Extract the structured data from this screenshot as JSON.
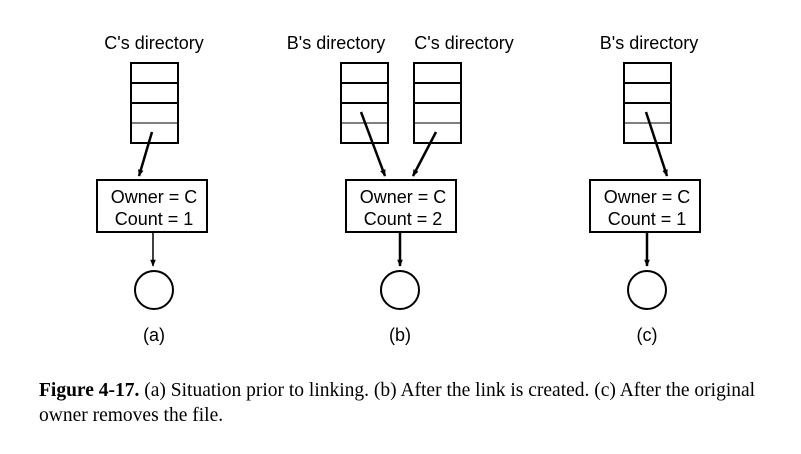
{
  "panels": [
    {
      "id": "a",
      "directories": [
        "C's directory"
      ],
      "inode": {
        "owner_text": "Owner = C",
        "count_text": "Count = 1"
      },
      "label": "(a)"
    },
    {
      "id": "b",
      "directories": [
        "B's directory",
        "C's directory"
      ],
      "inode": {
        "owner_text": "Owner = C",
        "count_text": "Count = 2"
      },
      "label": "(b)"
    },
    {
      "id": "c",
      "directories": [
        "B's directory"
      ],
      "inode": {
        "owner_text": "Owner = C",
        "count_text": "Count = 1"
      },
      "label": "(c)"
    }
  ],
  "caption": {
    "figure_label": "Figure 4-17.",
    "text": "(a) Situation prior to linking. (b) After the link is created. (c) After the original owner removes the file."
  }
}
